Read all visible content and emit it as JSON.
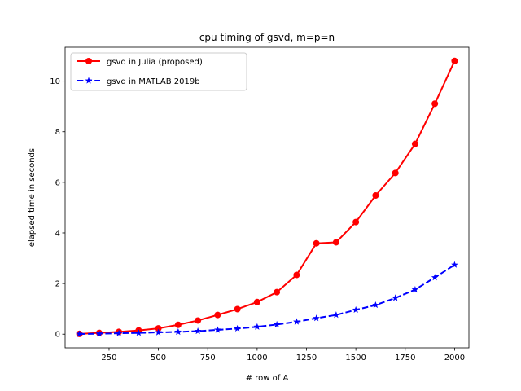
{
  "chart_data": {
    "type": "line",
    "title": "cpu timing of gsvd, m=p=n",
    "xlabel": "# row of A",
    "ylabel": "elapsed time in seconds",
    "xlim": [
      27.5,
      2072.5
    ],
    "ylim": [
      -0.54,
      11.34
    ],
    "xticks": [
      250,
      500,
      750,
      1000,
      1250,
      1500,
      1750,
      2000
    ],
    "yticks": [
      0,
      2,
      4,
      6,
      8,
      10
    ],
    "grid": false,
    "legend": "upper-left",
    "series": [
      {
        "name": "gsvd in Julia (proposed)",
        "color": "#ff0000",
        "linestyle": "solid",
        "marker": "circle",
        "x": [
          100,
          200,
          300,
          400,
          500,
          600,
          700,
          800,
          900,
          1000,
          1100,
          1200,
          1300,
          1400,
          1500,
          1600,
          1700,
          1800,
          1900,
          2000
        ],
        "y": [
          0.01,
          0.05,
          0.09,
          0.15,
          0.23,
          0.37,
          0.54,
          0.76,
          0.99,
          1.27,
          1.66,
          2.34,
          3.59,
          3.63,
          4.43,
          5.48,
          6.37,
          7.52,
          9.11,
          10.8
        ]
      },
      {
        "name": "gsvd in MATLAB 2019b",
        "color": "#0000ff",
        "linestyle": "dashed",
        "marker": "star",
        "x": [
          100,
          200,
          300,
          400,
          500,
          600,
          700,
          800,
          900,
          1000,
          1100,
          1200,
          1300,
          1400,
          1500,
          1600,
          1700,
          1800,
          1900,
          2000
        ],
        "y": [
          0.005,
          0.02,
          0.035,
          0.05,
          0.07,
          0.09,
          0.12,
          0.17,
          0.22,
          0.29,
          0.38,
          0.49,
          0.63,
          0.76,
          0.96,
          1.15,
          1.43,
          1.76,
          2.24,
          2.74
        ]
      }
    ]
  }
}
